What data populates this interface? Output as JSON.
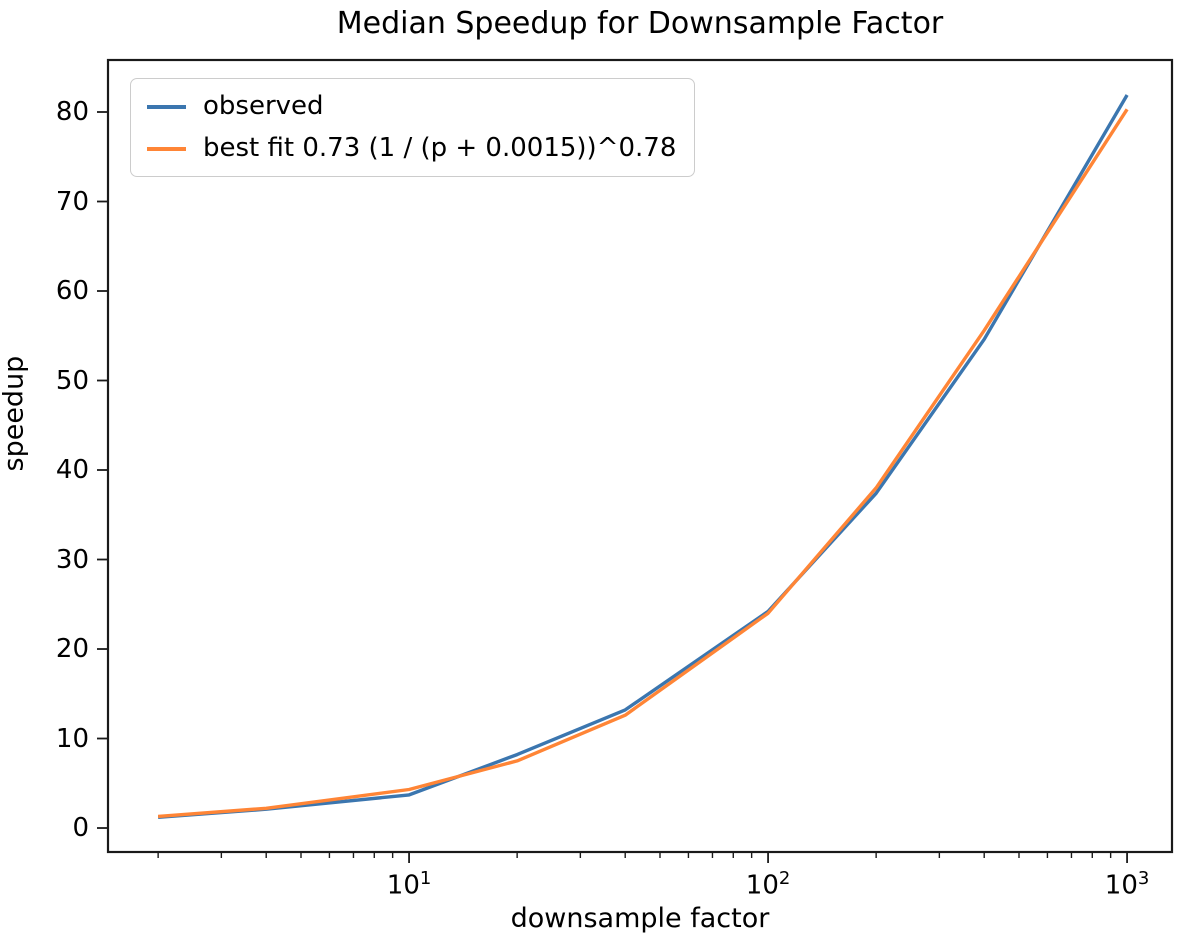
{
  "chart_data": {
    "type": "line",
    "title": "Median Speedup for Downsample Factor",
    "xlabel": "downsample factor",
    "ylabel": "speedup",
    "x_scale": "log",
    "grid": false,
    "legend_position": "upper left",
    "x": [
      2,
      4,
      10,
      20,
      40,
      100,
      200,
      400,
      1000
    ],
    "series": [
      {
        "name": "observed",
        "color": "#3b76af",
        "values": [
          1.2,
          2.1,
          3.7,
          8.2,
          13.2,
          24.2,
          37.4,
          54.6,
          81.9
        ]
      },
      {
        "name": "best fit 0.73 (1 / (p + 0.0015))^0.78",
        "color": "#ff8536",
        "values": [
          1.3,
          2.2,
          4.3,
          7.5,
          12.6,
          24.0,
          38.0,
          55.6,
          80.3
        ]
      }
    ],
    "xlim": [
      1.45,
      1334
    ],
    "ylim": [
      -2.68,
      85.81
    ],
    "y_ticks": [
      0,
      10,
      20,
      30,
      40,
      50,
      60,
      70,
      80
    ],
    "x_ticks": [
      {
        "value": 10,
        "base": "10",
        "exp": "1"
      },
      {
        "value": 100,
        "base": "10",
        "exp": "2"
      },
      {
        "value": 1000,
        "base": "10",
        "exp": "3"
      }
    ],
    "axis_color": "#1a1a1a",
    "line_width": 3.4
  }
}
